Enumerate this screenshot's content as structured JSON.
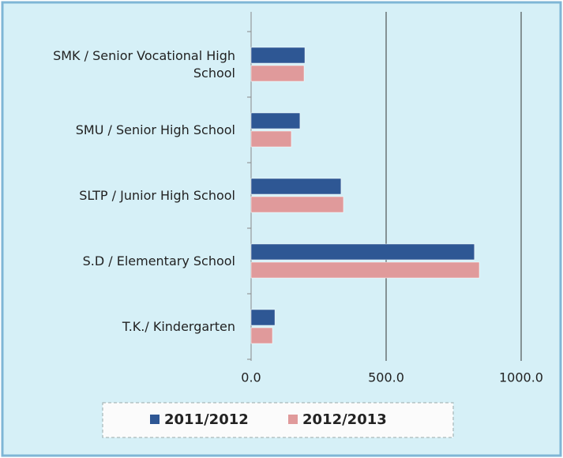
{
  "chart_data": {
    "type": "hbar",
    "categories": [
      "SMK / Senior Vocational High School",
      "SMU / Senior High School",
      "SLTP / Junior High School",
      "S.D / Elementary School",
      "T.K./ Kindergarten"
    ],
    "series": [
      {
        "name": "2011/2012",
        "color": "#2e5794",
        "values": [
          199,
          181,
          333,
          827,
          88
        ]
      },
      {
        "name": "2012/2013",
        "color": "#e09a9b",
        "values": [
          196,
          149,
          342,
          845,
          79
        ]
      }
    ],
    "xlim": [
      0,
      1000
    ],
    "xticks": [
      {
        "value": 0,
        "label": "0.0"
      },
      {
        "value": 500,
        "label": "500.0"
      },
      {
        "value": 1000,
        "label": "1000.0"
      }
    ],
    "grid": true
  }
}
